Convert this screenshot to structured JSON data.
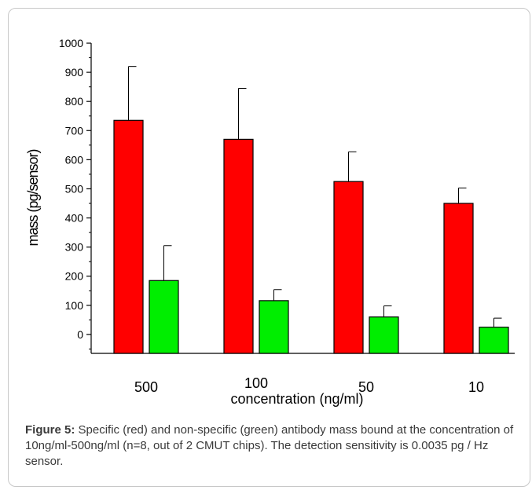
{
  "chart_data": {
    "type": "bar",
    "categories": [
      "500",
      "100",
      "50",
      "10"
    ],
    "series": [
      {
        "color": "#ff0000",
        "values": [
          735,
          670,
          525,
          450
        ],
        "errors": [
          185,
          175,
          102,
          53
        ]
      },
      {
        "color": "#00ee00",
        "values": [
          185,
          116,
          60,
          25
        ],
        "errors": [
          120,
          38,
          38,
          31
        ]
      }
    ],
    "xlabel": "concentration (ng/ml)",
    "ylabel": "mass (pg/sensor)",
    "ylim": [
      -65,
      1000
    ],
    "yticks": [
      0,
      100,
      200,
      300,
      400,
      500,
      600,
      700,
      800,
      900,
      1000
    ],
    "yminor_step": 50,
    "grid": false,
    "legend": "none"
  },
  "caption": {
    "label": "Figure 5:",
    "text": " Specific (red) and non-specific (green) antibody mass bound at the concentration of 10ng/ml-500ng/ml (n=8, out of 2 CMUT chips). The detection sensitivity is 0.0035 pg / Hz sensor."
  }
}
